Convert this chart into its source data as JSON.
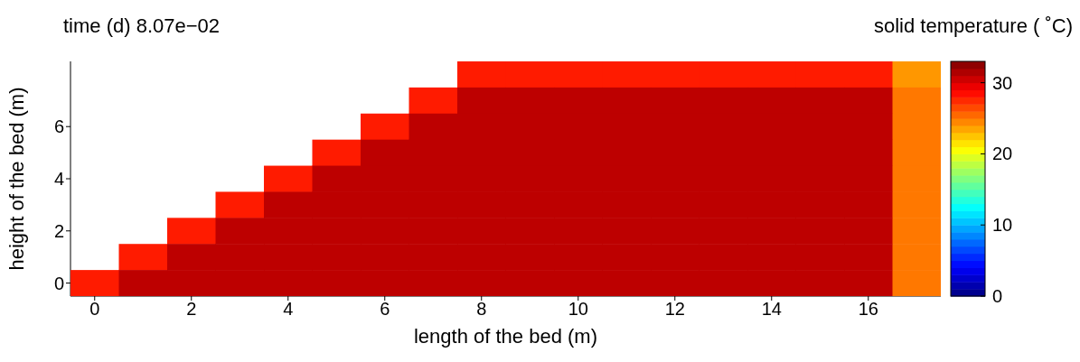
{
  "chart_data": {
    "type": "heatmap",
    "title": "time (d) 8.07e−02",
    "xlabel": "length of the bed (m)",
    "ylabel": "height of the bed (m)",
    "clabel": "solid temperature ( ˚C)",
    "categories": [
      "0",
      null,
      "2",
      null,
      "4",
      null,
      "6",
      null,
      "8",
      null,
      "10",
      null,
      "12",
      null,
      "14",
      null,
      "16",
      null
    ],
    "y_categories": [
      null,
      null,
      "6",
      null,
      "4",
      null,
      "2",
      null,
      "0"
    ],
    "clim": [
      0,
      33
    ],
    "cticks": [
      0,
      10,
      20,
      30
    ],
    "cells": [
      [
        null,
        null,
        null,
        null,
        null,
        null,
        null,
        null,
        28,
        28,
        28,
        28,
        28,
        28,
        28,
        28,
        28,
        24
      ],
      [
        null,
        null,
        null,
        null,
        null,
        null,
        null,
        28,
        31,
        31,
        31,
        31,
        31,
        31,
        31,
        31,
        31,
        25
      ],
      [
        null,
        null,
        null,
        null,
        null,
        null,
        28,
        31,
        31,
        31,
        31,
        31,
        31,
        31,
        31,
        31,
        31,
        25
      ],
      [
        null,
        null,
        null,
        null,
        null,
        28,
        31,
        31,
        31,
        31,
        31,
        31,
        31,
        31,
        31,
        31,
        31,
        25
      ],
      [
        null,
        null,
        null,
        null,
        28,
        31,
        31,
        31,
        31,
        31,
        31,
        31,
        31,
        31,
        31,
        31,
        31,
        25
      ],
      [
        null,
        null,
        null,
        28,
        31,
        31,
        31,
        31,
        31,
        31,
        31,
        31,
        31,
        31,
        31,
        31,
        31,
        25
      ],
      [
        null,
        null,
        28,
        31,
        31,
        31,
        31,
        31,
        31,
        31,
        31,
        31,
        31,
        31,
        31,
        31,
        31,
        25
      ],
      [
        null,
        28,
        31,
        31,
        31,
        31,
        31,
        31,
        31,
        31,
        31,
        31,
        31,
        31,
        31,
        31,
        31,
        25
      ],
      [
        28,
        31,
        31,
        31,
        31,
        31,
        31,
        31,
        31,
        31,
        31,
        31,
        31,
        31,
        31,
        31,
        31,
        25
      ]
    ]
  }
}
